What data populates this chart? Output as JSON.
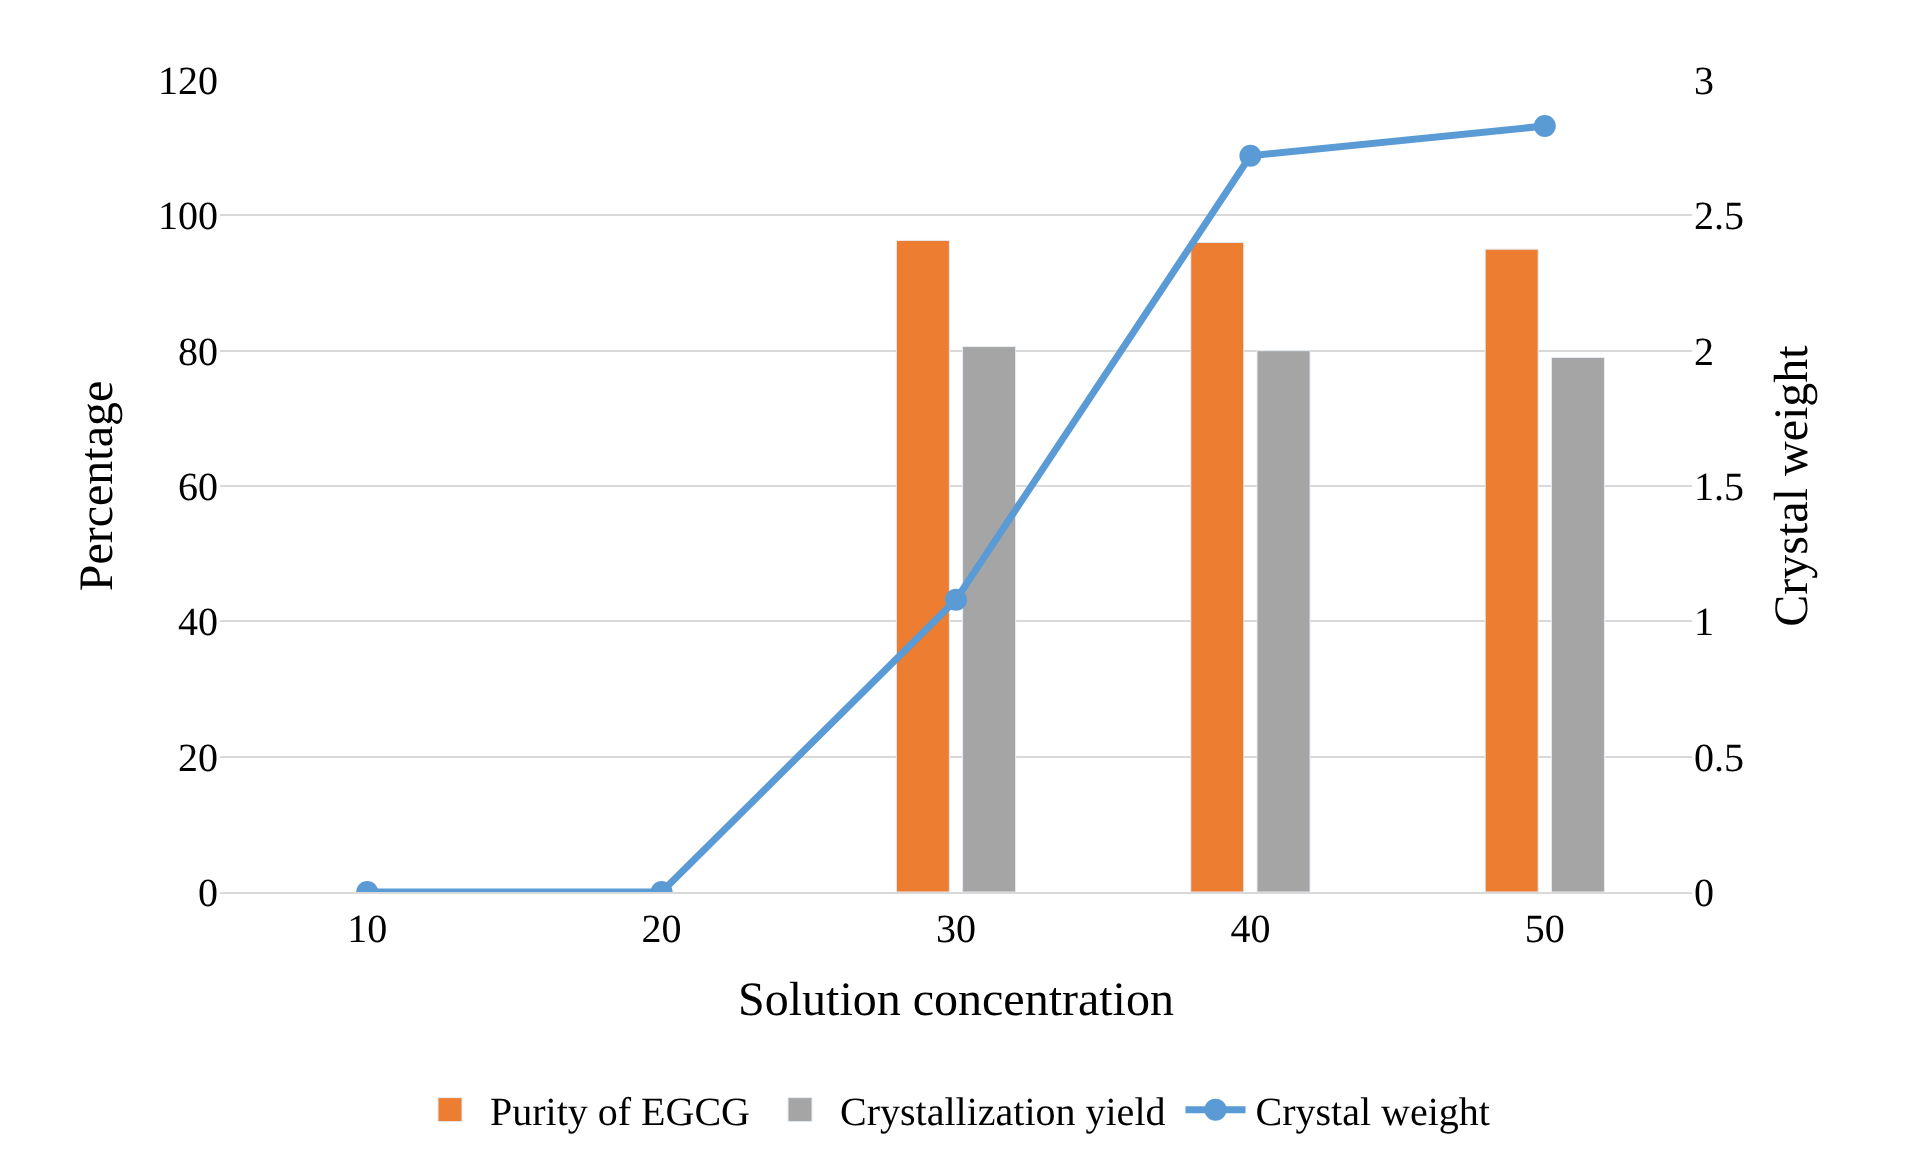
{
  "chart_data": {
    "type": "bar",
    "xlabel": "Solution concentration",
    "ylabel": "Percentage",
    "y2label": "Crystal weight",
    "categories": [
      "10",
      "20",
      "30",
      "40",
      "50"
    ],
    "series": [
      {
        "name": "Purity of EGCG",
        "color": "#ed7d31",
        "values": [
          null,
          null,
          96.3,
          96,
          95
        ]
      },
      {
        "name": "Crystallization yield",
        "color": "#a5a5a5",
        "values": [
          null,
          null,
          80.6,
          80,
          79
        ]
      },
      {
        "name": "Crystal weight",
        "type": "line",
        "axis": "y2",
        "color": "#5b9bd5",
        "marker": "circle",
        "values": [
          0,
          0,
          1.08,
          2.72,
          2.83
        ]
      }
    ],
    "ylim": [
      0,
      120
    ],
    "yticks": [
      0,
      20,
      40,
      60,
      80,
      100,
      120
    ],
    "y2lim": [
      0,
      3
    ],
    "y2ticks": [
      0,
      0.5,
      1,
      1.5,
      2,
      2.5,
      3
    ],
    "grid": "y",
    "legend": "bottom"
  }
}
